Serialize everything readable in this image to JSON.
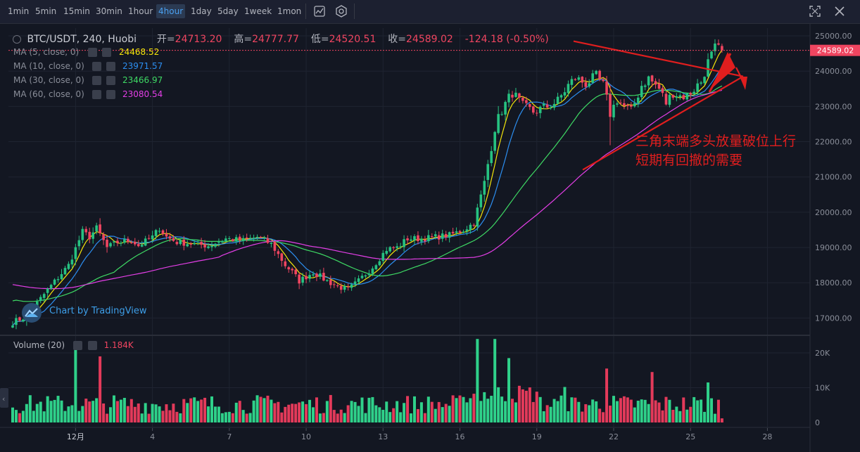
{
  "toolbar": {
    "timeframes": [
      "1min",
      "5min",
      "15min",
      "30min",
      "1hour",
      "4hour",
      "1day",
      "5day",
      "1week",
      "1mon"
    ],
    "active": "4hour"
  },
  "header": {
    "symbol": "BTC/USDT, 240, Huobi",
    "open_label": "开=",
    "open": "24713.20",
    "high_label": "高=",
    "high": "24777.77",
    "low_label": "低=",
    "low": "24520.51",
    "close_label": "收=",
    "close": "24589.02",
    "change": "-124.18 (-0.50%)"
  },
  "indicators": [
    {
      "label": "MA (5, close, 0)",
      "value": "24468.52",
      "color": "#f5e50a"
    },
    {
      "label": "MA (10, close, 0)",
      "value": "23971.57",
      "color": "#2c8ef0"
    },
    {
      "label": "MA (30, close, 0)",
      "value": "23466.97",
      "color": "#3ed964"
    },
    {
      "label": "MA (60, close, 0)",
      "value": "23080.54",
      "color": "#e33ee6"
    }
  ],
  "volume_legend": {
    "label": "Volume (20)",
    "value": "1.184K"
  },
  "price_tag": "24589.02",
  "annotation": [
    "三角末端多头放量破位上行",
    "短期有回撤的需要"
  ],
  "watermark": "Chart by TradingView",
  "colors": {
    "up": "#26c281",
    "down": "#ef4560",
    "volume_up": "#2fd18a",
    "volume_down": "#e33a5a",
    "annotation": "#e01e1e",
    "background": "#131722"
  },
  "chart_data": {
    "type": "candlestick",
    "title": "BTC/USDT, 240, Huobi",
    "interval": "4 hours",
    "price_axis": {
      "ticks": [
        17000,
        18000,
        19000,
        20000,
        21000,
        22000,
        23000,
        24000,
        25000
      ],
      "tick_labels": [
        "17000.00",
        "18000.00",
        "19000.00",
        "20000.00",
        "21000.00",
        "22000.00",
        "23000.00",
        "24000.00",
        "25000.00"
      ],
      "range": [
        16550,
        25220
      ]
    },
    "volume_axis": {
      "ticks": [
        0,
        10000,
        20000
      ],
      "tick_labels": [
        "0",
        "10K",
        "20K"
      ]
    },
    "x_axis": {
      "tick_labels": [
        "12月",
        "4",
        "7",
        "10",
        "13",
        "16",
        "19",
        "22",
        "25",
        "28"
      ],
      "label_bar_index": [
        18,
        40,
        62,
        84,
        106,
        128,
        150,
        172,
        194,
        216
      ]
    },
    "price_key_points": [
      [
        0,
        16880
      ],
      [
        4,
        17050
      ],
      [
        10,
        17800
      ],
      [
        16,
        18500
      ],
      [
        20,
        19450
      ],
      [
        22,
        19300
      ],
      [
        24,
        19550
      ],
      [
        27,
        19000
      ],
      [
        30,
        19150
      ],
      [
        34,
        19200
      ],
      [
        36,
        19050
      ],
      [
        40,
        19300
      ],
      [
        42,
        19550
      ],
      [
        44,
        19300
      ],
      [
        47,
        19150
      ],
      [
        52,
        19100
      ],
      [
        56,
        19050
      ],
      [
        61,
        19250
      ],
      [
        66,
        19200
      ],
      [
        70,
        19300
      ],
      [
        74,
        19100
      ],
      [
        78,
        18500
      ],
      [
        80,
        18300
      ],
      [
        82,
        18050
      ],
      [
        86,
        18300
      ],
      [
        90,
        18050
      ],
      [
        93,
        17900
      ],
      [
        96,
        17800
      ],
      [
        99,
        18050
      ],
      [
        103,
        18450
      ],
      [
        107,
        18950
      ],
      [
        110,
        19000
      ],
      [
        113,
        19250
      ],
      [
        117,
        19250
      ],
      [
        121,
        19300
      ],
      [
        125,
        19350
      ],
      [
        129,
        19500
      ],
      [
        132,
        19700
      ],
      [
        135,
        20850
      ],
      [
        138,
        22400
      ],
      [
        140,
        22900
      ],
      [
        143,
        23400
      ],
      [
        146,
        23000
      ],
      [
        149,
        22850
      ],
      [
        152,
        22950
      ],
      [
        156,
        23150
      ],
      [
        159,
        23600
      ],
      [
        161,
        23800
      ],
      [
        164,
        23650
      ],
      [
        167,
        23850
      ],
      [
        169,
        23600
      ],
      [
        171,
        22800
      ],
      [
        173,
        23200
      ],
      [
        175,
        23000
      ],
      [
        177,
        22850
      ],
      [
        180,
        23600
      ],
      [
        182,
        23800
      ],
      [
        185,
        23500
      ],
      [
        187,
        23100
      ],
      [
        189,
        23400
      ],
      [
        191,
        23300
      ],
      [
        193,
        23300
      ],
      [
        195,
        23500
      ],
      [
        197,
        23700
      ],
      [
        199,
        24250
      ],
      [
        201,
        24650
      ],
      [
        203,
        24589
      ]
    ],
    "ma_series": [
      {
        "name": "MA (5, close, 0)",
        "period": 5,
        "last": 24468.52
      },
      {
        "name": "MA (10, close, 0)",
        "period": 10,
        "last": 23971.57
      },
      {
        "name": "MA (30, close, 0)",
        "period": 30,
        "last": 23466.97
      },
      {
        "name": "MA (60, close, 0)",
        "period": 60,
        "last": 23080.54
      }
    ],
    "last_bar": {
      "open": 24713.2,
      "high": 24777.77,
      "low": 24520.51,
      "close": 24589.02,
      "change": -124.18,
      "change_pct": -0.5,
      "volume": 1184
    },
    "volume_spikes": [
      [
        18,
        21000
      ],
      [
        25,
        19000
      ],
      [
        133,
        24000
      ],
      [
        138,
        24000
      ],
      [
        142,
        18500
      ],
      [
        158,
        10200
      ],
      [
        170,
        15500
      ],
      [
        183,
        14500
      ],
      [
        199,
        11500
      ]
    ],
    "triangle_apex_price": 23850,
    "triangle_upper_start_price": 25050,
    "triangle_lower_start_price": 21800
  }
}
